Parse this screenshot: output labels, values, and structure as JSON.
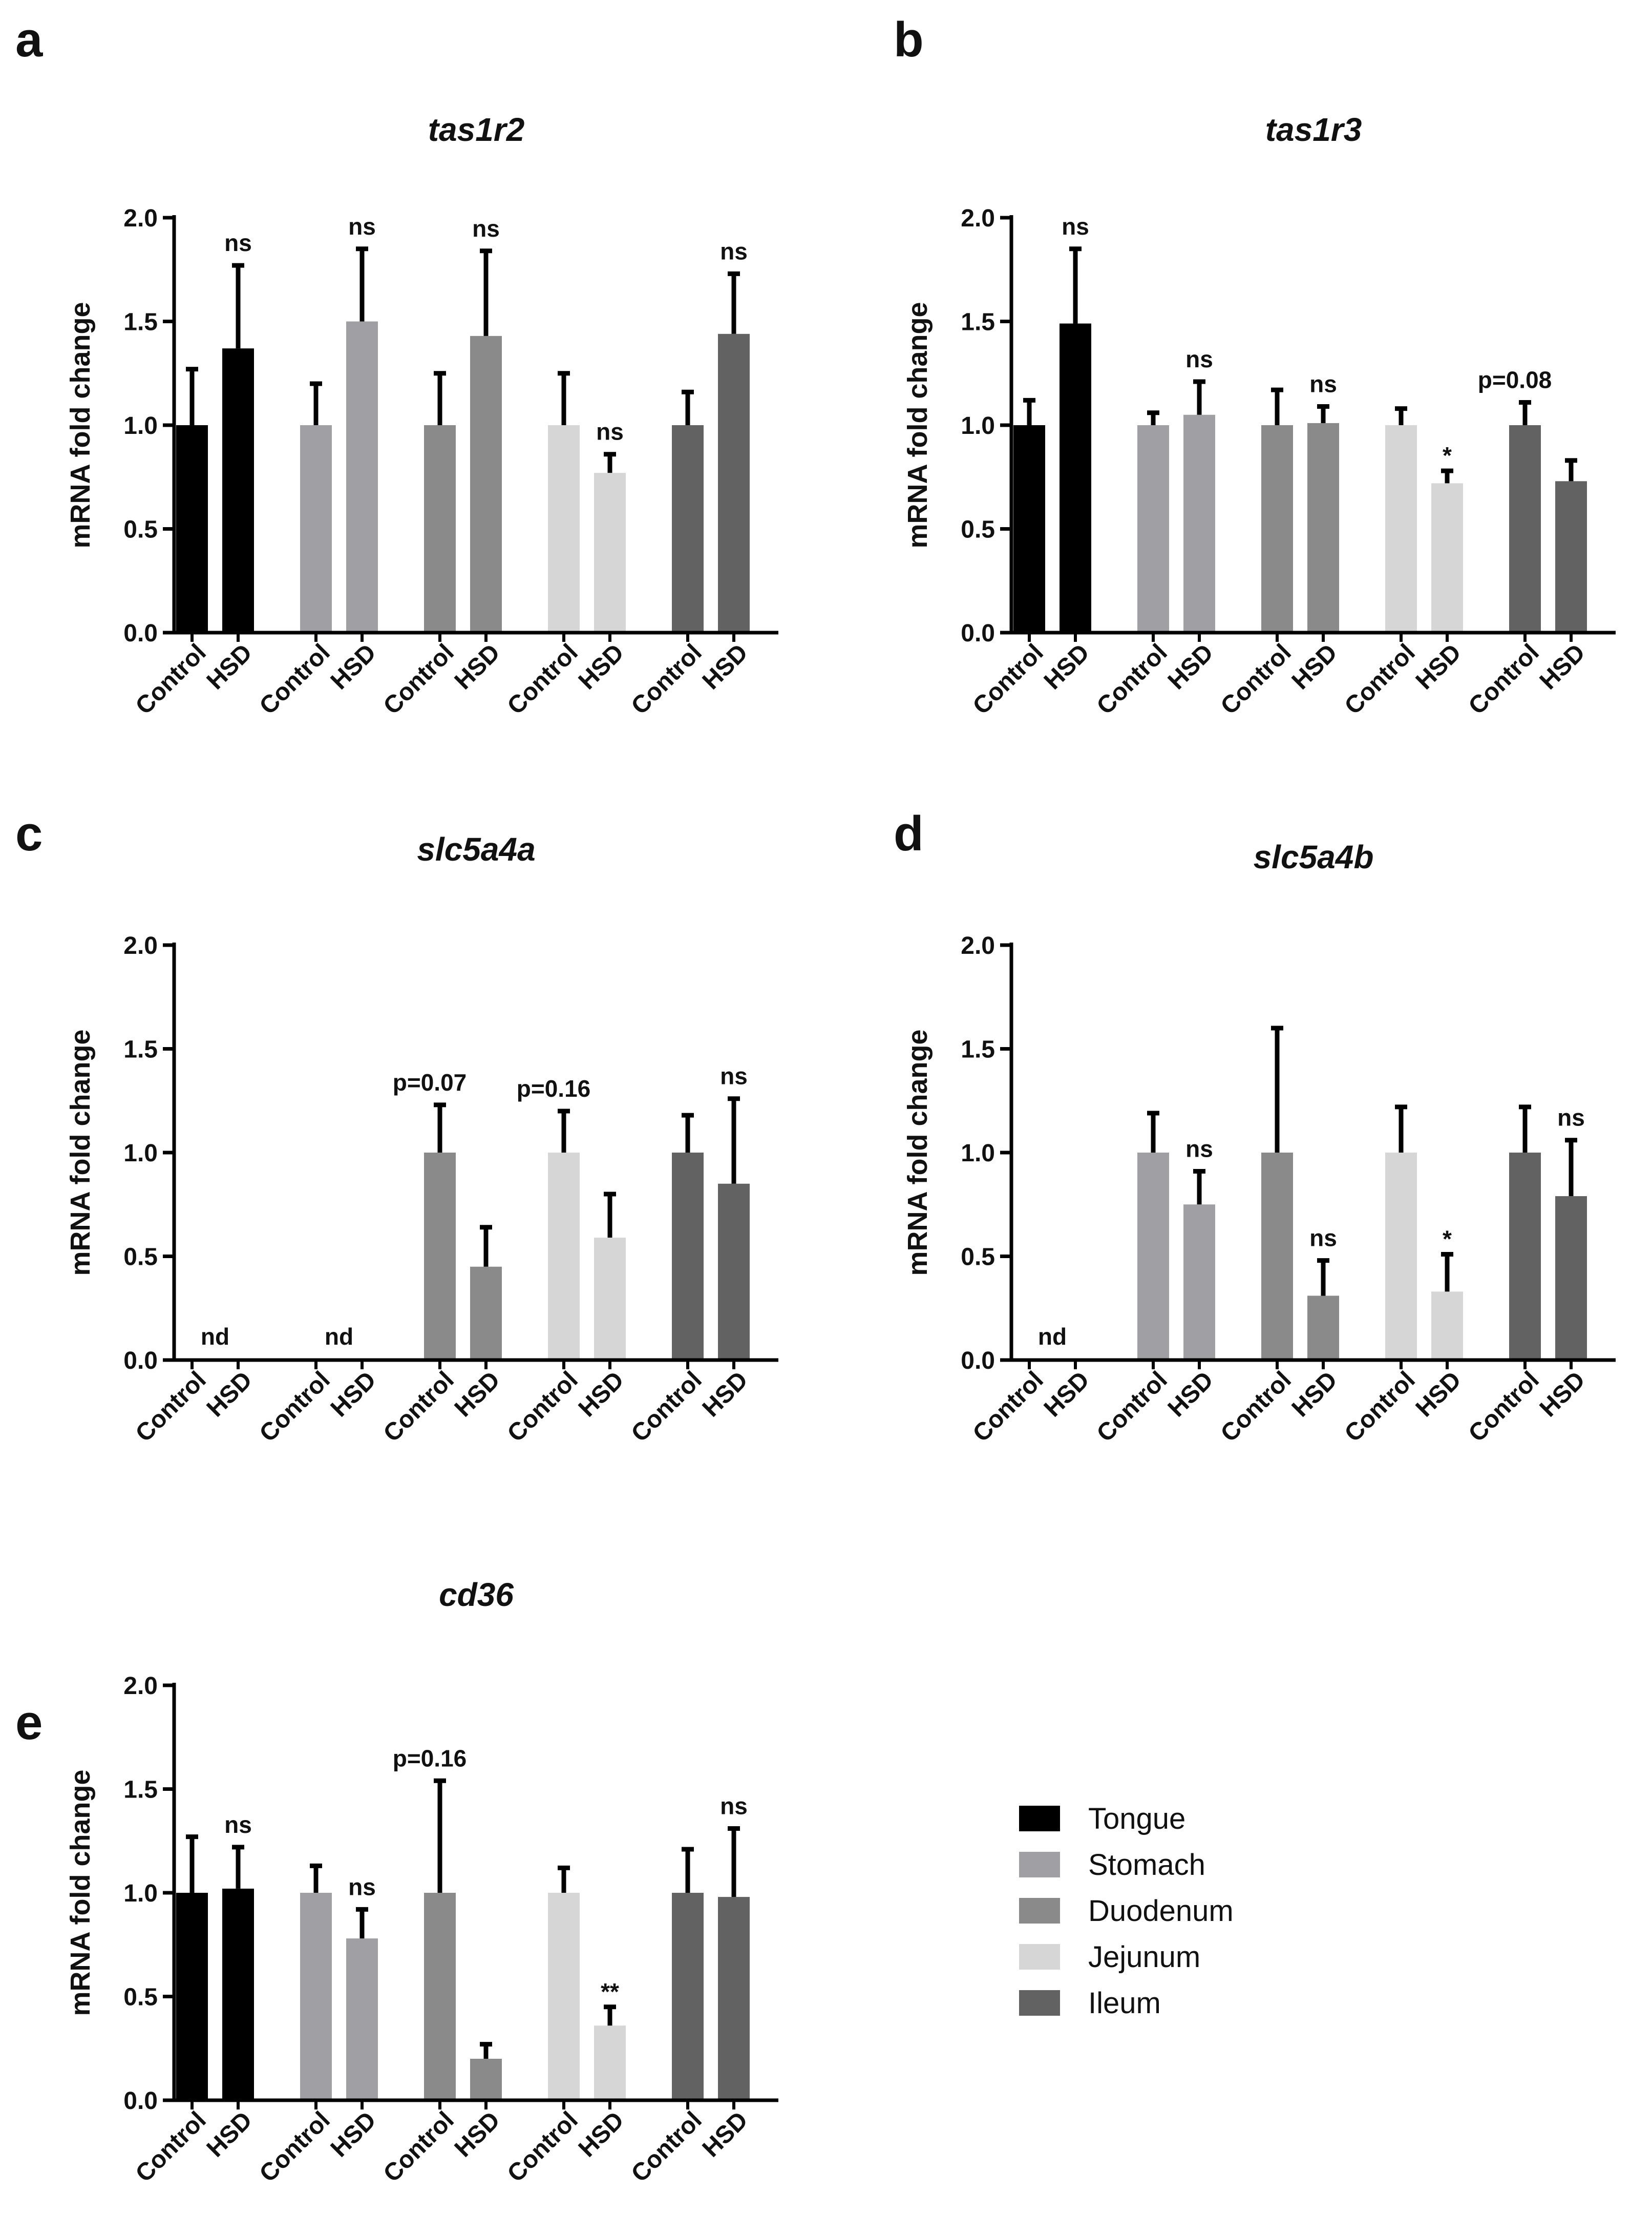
{
  "figure": {
    "panel_letters": [
      "a",
      "b",
      "c",
      "d",
      "e"
    ]
  },
  "legend": {
    "items": [
      {
        "label": "Tongue",
        "color": "#000000"
      },
      {
        "label": "Stomach",
        "color": "#a0a0a4"
      },
      {
        "label": "Duodenum",
        "color": "#8a8a8a"
      },
      {
        "label": "Jejunum",
        "color": "#d6d6d6"
      },
      {
        "label": "Ileum",
        "color": "#626262"
      }
    ]
  },
  "chart_data": [
    {
      "panel": "a",
      "type": "bar",
      "title": "tas1r2",
      "ylabel": "mRNA fold change",
      "xlabel": "",
      "ylim": [
        0,
        2.0
      ],
      "yticks": [
        "0.0",
        "0.5",
        "1.0",
        "1.5",
        "2.0"
      ],
      "categories": [
        "Control",
        "HSD",
        "Control",
        "HSD",
        "Control",
        "HSD",
        "Control",
        "HSD",
        "Control",
        "HSD"
      ],
      "tissues": [
        "Tongue",
        "Tongue",
        "Stomach",
        "Stomach",
        "Duodenum",
        "Duodenum",
        "Jejunum",
        "Jejunum",
        "Ileum",
        "Ileum"
      ],
      "values": [
        1.0,
        1.37,
        1.0,
        1.5,
        1.0,
        1.43,
        1.0,
        0.77,
        1.0,
        1.44
      ],
      "errors": [
        0.27,
        0.4,
        0.2,
        0.35,
        0.25,
        0.41,
        0.25,
        0.09,
        0.16,
        0.29
      ],
      "annotations": [
        "",
        "ns",
        "",
        "ns",
        "",
        "ns",
        "",
        "ns",
        "",
        "ns"
      ]
    },
    {
      "panel": "b",
      "type": "bar",
      "title": "tas1r3",
      "ylabel": "mRNA fold change",
      "xlabel": "",
      "ylim": [
        0,
        2.0
      ],
      "yticks": [
        "0.0",
        "0.5",
        "1.0",
        "1.5",
        "2.0"
      ],
      "categories": [
        "Control",
        "HSD",
        "Control",
        "HSD",
        "Control",
        "HSD",
        "Control",
        "HSD",
        "Control",
        "HSD"
      ],
      "tissues": [
        "Tongue",
        "Tongue",
        "Stomach",
        "Stomach",
        "Duodenum",
        "Duodenum",
        "Jejunum",
        "Jejunum",
        "Ileum",
        "Ileum"
      ],
      "values": [
        1.0,
        1.49,
        1.0,
        1.05,
        1.0,
        1.01,
        1.0,
        0.72,
        1.0,
        0.73
      ],
      "errors": [
        0.12,
        0.36,
        0.06,
        0.16,
        0.17,
        0.08,
        0.08,
        0.06,
        0.11,
        0.1
      ],
      "annotations": [
        "",
        "ns",
        "",
        "ns",
        "",
        "ns",
        "",
        "*",
        "p=0.08",
        ""
      ]
    },
    {
      "panel": "c",
      "type": "bar",
      "title": "slc5a4a",
      "ylabel": "mRNA fold change",
      "xlabel": "",
      "ylim": [
        0,
        2.0
      ],
      "yticks": [
        "0.0",
        "0.5",
        "1.0",
        "1.5",
        "2.0"
      ],
      "categories": [
        "Control",
        "HSD",
        "Control",
        "HSD",
        "Control",
        "HSD",
        "Control",
        "HSD",
        "Control",
        "HSD"
      ],
      "tissues": [
        "Tongue",
        "Tongue",
        "Stomach",
        "Stomach",
        "Duodenum",
        "Duodenum",
        "Jejunum",
        "Jejunum",
        "Ileum",
        "Ileum"
      ],
      "values": [
        0,
        0,
        0,
        0,
        1.0,
        0.45,
        1.0,
        0.59,
        1.0,
        0.85
      ],
      "errors": [
        0,
        0,
        0,
        0,
        0.23,
        0.19,
        0.2,
        0.21,
        0.18,
        0.41
      ],
      "annotations": [
        "nd",
        "",
        "nd",
        "",
        "p=0.07",
        "",
        "p=0.16",
        "",
        "",
        "ns"
      ]
    },
    {
      "panel": "d",
      "type": "bar",
      "title": "slc5a4b",
      "ylabel": "mRNA fold change",
      "xlabel": "",
      "ylim": [
        0,
        2.0
      ],
      "yticks": [
        "0.0",
        "0.5",
        "1.0",
        "1.5",
        "2.0"
      ],
      "categories": [
        "Control",
        "HSD",
        "Control",
        "HSD",
        "Control",
        "HSD",
        "Control",
        "HSD",
        "Control",
        "HSD"
      ],
      "tissues": [
        "Tongue",
        "Tongue",
        "Stomach",
        "Stomach",
        "Duodenum",
        "Duodenum",
        "Jejunum",
        "Jejunum",
        "Ileum",
        "Ileum"
      ],
      "values": [
        0,
        0,
        1.0,
        0.75,
        1.0,
        0.31,
        1.0,
        0.33,
        1.0,
        0.79
      ],
      "errors": [
        0,
        0,
        0.19,
        0.16,
        0.6,
        0.17,
        0.22,
        0.18,
        0.22,
        0.27
      ],
      "annotations": [
        "nd",
        "",
        "",
        "ns",
        "",
        "ns",
        "",
        "*",
        "",
        "ns"
      ]
    },
    {
      "panel": "e",
      "type": "bar",
      "title": "cd36",
      "ylabel": "mRNA fold change",
      "xlabel": "",
      "ylim": [
        0,
        2.0
      ],
      "yticks": [
        "0.0",
        "0.5",
        "1.0",
        "1.5",
        "2.0"
      ],
      "categories": [
        "Control",
        "HSD",
        "Control",
        "HSD",
        "Control",
        "HSD",
        "Control",
        "HSD",
        "Control",
        "HSD"
      ],
      "tissues": [
        "Tongue",
        "Tongue",
        "Stomach",
        "Stomach",
        "Duodenum",
        "Duodenum",
        "Jejunum",
        "Jejunum",
        "Ileum",
        "Ileum"
      ],
      "values": [
        1.0,
        1.02,
        1.0,
        0.78,
        1.0,
        0.2,
        1.0,
        0.36,
        1.0,
        0.98
      ],
      "errors": [
        0.27,
        0.2,
        0.13,
        0.14,
        0.54,
        0.07,
        0.12,
        0.09,
        0.21,
        0.33
      ],
      "annotations": [
        "",
        "ns",
        "",
        "ns",
        "p=0.16",
        "",
        "",
        "**",
        "",
        "ns"
      ]
    }
  ]
}
